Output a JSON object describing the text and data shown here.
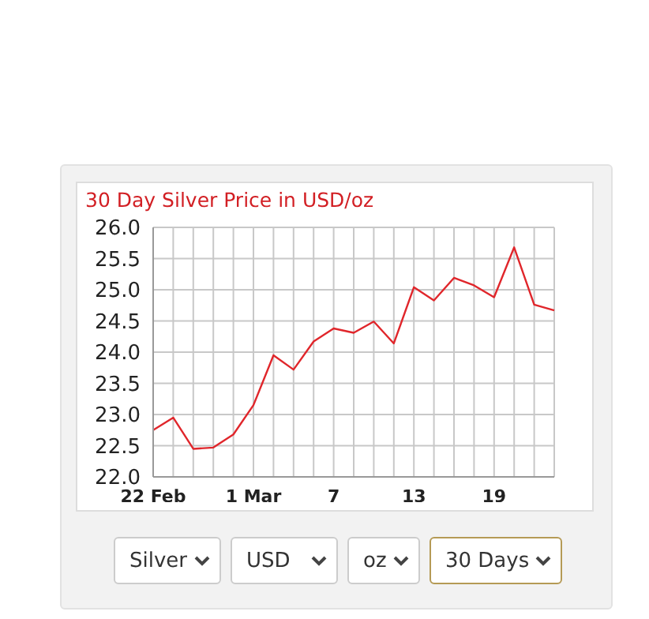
{
  "chart_data": {
    "type": "line",
    "title": "30 Day Silver Price in USD/oz",
    "categories": [
      "22 Feb",
      null,
      null,
      null,
      null,
      "1 Mar",
      null,
      null,
      null,
      "7",
      null,
      null,
      null,
      "13",
      null,
      null,
      null,
      "19",
      null,
      null,
      null
    ],
    "series": [
      {
        "color": "#e0262b",
        "values": [
          22.75,
          22.95,
          22.45,
          22.47,
          22.68,
          23.15,
          23.95,
          23.72,
          24.17,
          24.38,
          24.31,
          24.49,
          24.14,
          25.04,
          24.83,
          25.19,
          25.07,
          24.88,
          25.68,
          24.76,
          24.67
        ]
      }
    ],
    "ylim": [
      22.0,
      26.0
    ],
    "yticks": [
      {
        "value": 22,
        "label": "22.0"
      },
      {
        "value": 22.5,
        "label": "22.5"
      },
      {
        "value": 23,
        "label": "23.0"
      },
      {
        "value": 23.5,
        "label": "23.5"
      },
      {
        "value": 24,
        "label": "24.0"
      },
      {
        "value": 24.5,
        "label": "24.5"
      },
      {
        "value": 25,
        "label": "25.0"
      },
      {
        "value": 25.5,
        "label": "25.5"
      },
      {
        "value": 26,
        "label": "26.0"
      }
    ],
    "grid": true,
    "marker": "none",
    "line_style": "solid",
    "annotations": [
      "Silver",
      "USD",
      "oz",
      "30 Days"
    ]
  }
}
